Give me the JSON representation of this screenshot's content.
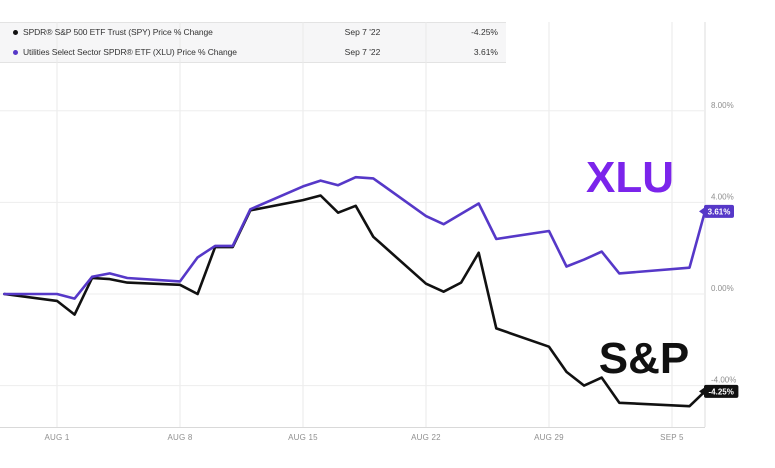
{
  "theme": {
    "background": "#ffffff",
    "grid_color": "#e9e9e9",
    "plot_border_color": "#dedede",
    "axis_label_color": "#8f8f8f",
    "legend_bg": "#f6f6f7",
    "legend_border": "#e3e3e3",
    "legend_text_color": "#333333"
  },
  "legend": {
    "as_of_date": "Sep 7 '22"
  },
  "chart_data": {
    "type": "line",
    "title": "",
    "x_axis": {
      "tick_labels": [
        "AUG 1",
        "AUG 8",
        "AUG 15",
        "AUG 22",
        "AUG 29",
        "SEP 5"
      ],
      "tick_day_offsets": [
        3,
        10,
        17,
        24,
        31,
        38
      ]
    },
    "y_axis": {
      "tick_labels": [
        "8.00%",
        "4.00%",
        "0.00%",
        "-4.00%"
      ],
      "tick_values": [
        8,
        4,
        0,
        -4
      ],
      "unit": "%",
      "approx_visible_range": [
        -5.8,
        11.9
      ],
      "position": "right"
    },
    "grid": true,
    "legend_position": "top",
    "dates": [
      "Jul 29",
      "Aug 1",
      "Aug 2",
      "Aug 3",
      "Aug 4",
      "Aug 5",
      "Aug 8",
      "Aug 9",
      "Aug 10",
      "Aug 11",
      "Aug 12",
      "Aug 15",
      "Aug 16",
      "Aug 17",
      "Aug 18",
      "Aug 19",
      "Aug 22",
      "Aug 23",
      "Aug 24",
      "Aug 25",
      "Aug 26",
      "Aug 29",
      "Aug 30",
      "Aug 31",
      "Sep 1",
      "Sep 2",
      "Sep 6",
      "Sep 7"
    ],
    "day_offsets": [
      0,
      3,
      4,
      5,
      6,
      7,
      10,
      11,
      12,
      13,
      14,
      17,
      18,
      19,
      20,
      21,
      24,
      25,
      26,
      27,
      28,
      31,
      32,
      33,
      34,
      35,
      39,
      40
    ],
    "series": [
      {
        "name": "SPY",
        "legend_name": "SPDR® S&P 500 ETF Trust (SPY) Price % Change",
        "annotation": "S&P",
        "annotation_color": "#111111",
        "color": "#111111",
        "badge_text": "-4.25%",
        "badge_color": "#111111",
        "values": [
          0,
          -0.3,
          -0.9,
          0.7,
          0.65,
          0.5,
          0.4,
          0.0,
          2.05,
          2.05,
          3.65,
          4.1,
          4.3,
          3.55,
          3.85,
          2.5,
          0.45,
          0.1,
          0.5,
          1.8,
          -1.5,
          -2.3,
          -3.4,
          -4.0,
          -3.65,
          -4.75,
          -4.9,
          -4.25
        ]
      },
      {
        "name": "XLU",
        "legend_name": "Utilities Select Sector SPDR® ETF (XLU) Price % Change",
        "annotation": "XLU",
        "annotation_color": "#7B24EB",
        "color": "#5638C8",
        "badge_text": "3.61%",
        "badge_color": "#5638C8",
        "values": [
          0,
          0.0,
          -0.2,
          0.75,
          0.9,
          0.7,
          0.55,
          1.6,
          2.1,
          2.1,
          3.7,
          4.7,
          4.95,
          4.75,
          5.1,
          5.05,
          3.4,
          3.05,
          3.5,
          3.95,
          2.4,
          2.75,
          1.2,
          1.5,
          1.85,
          0.9,
          1.15,
          3.61
        ]
      }
    ]
  }
}
